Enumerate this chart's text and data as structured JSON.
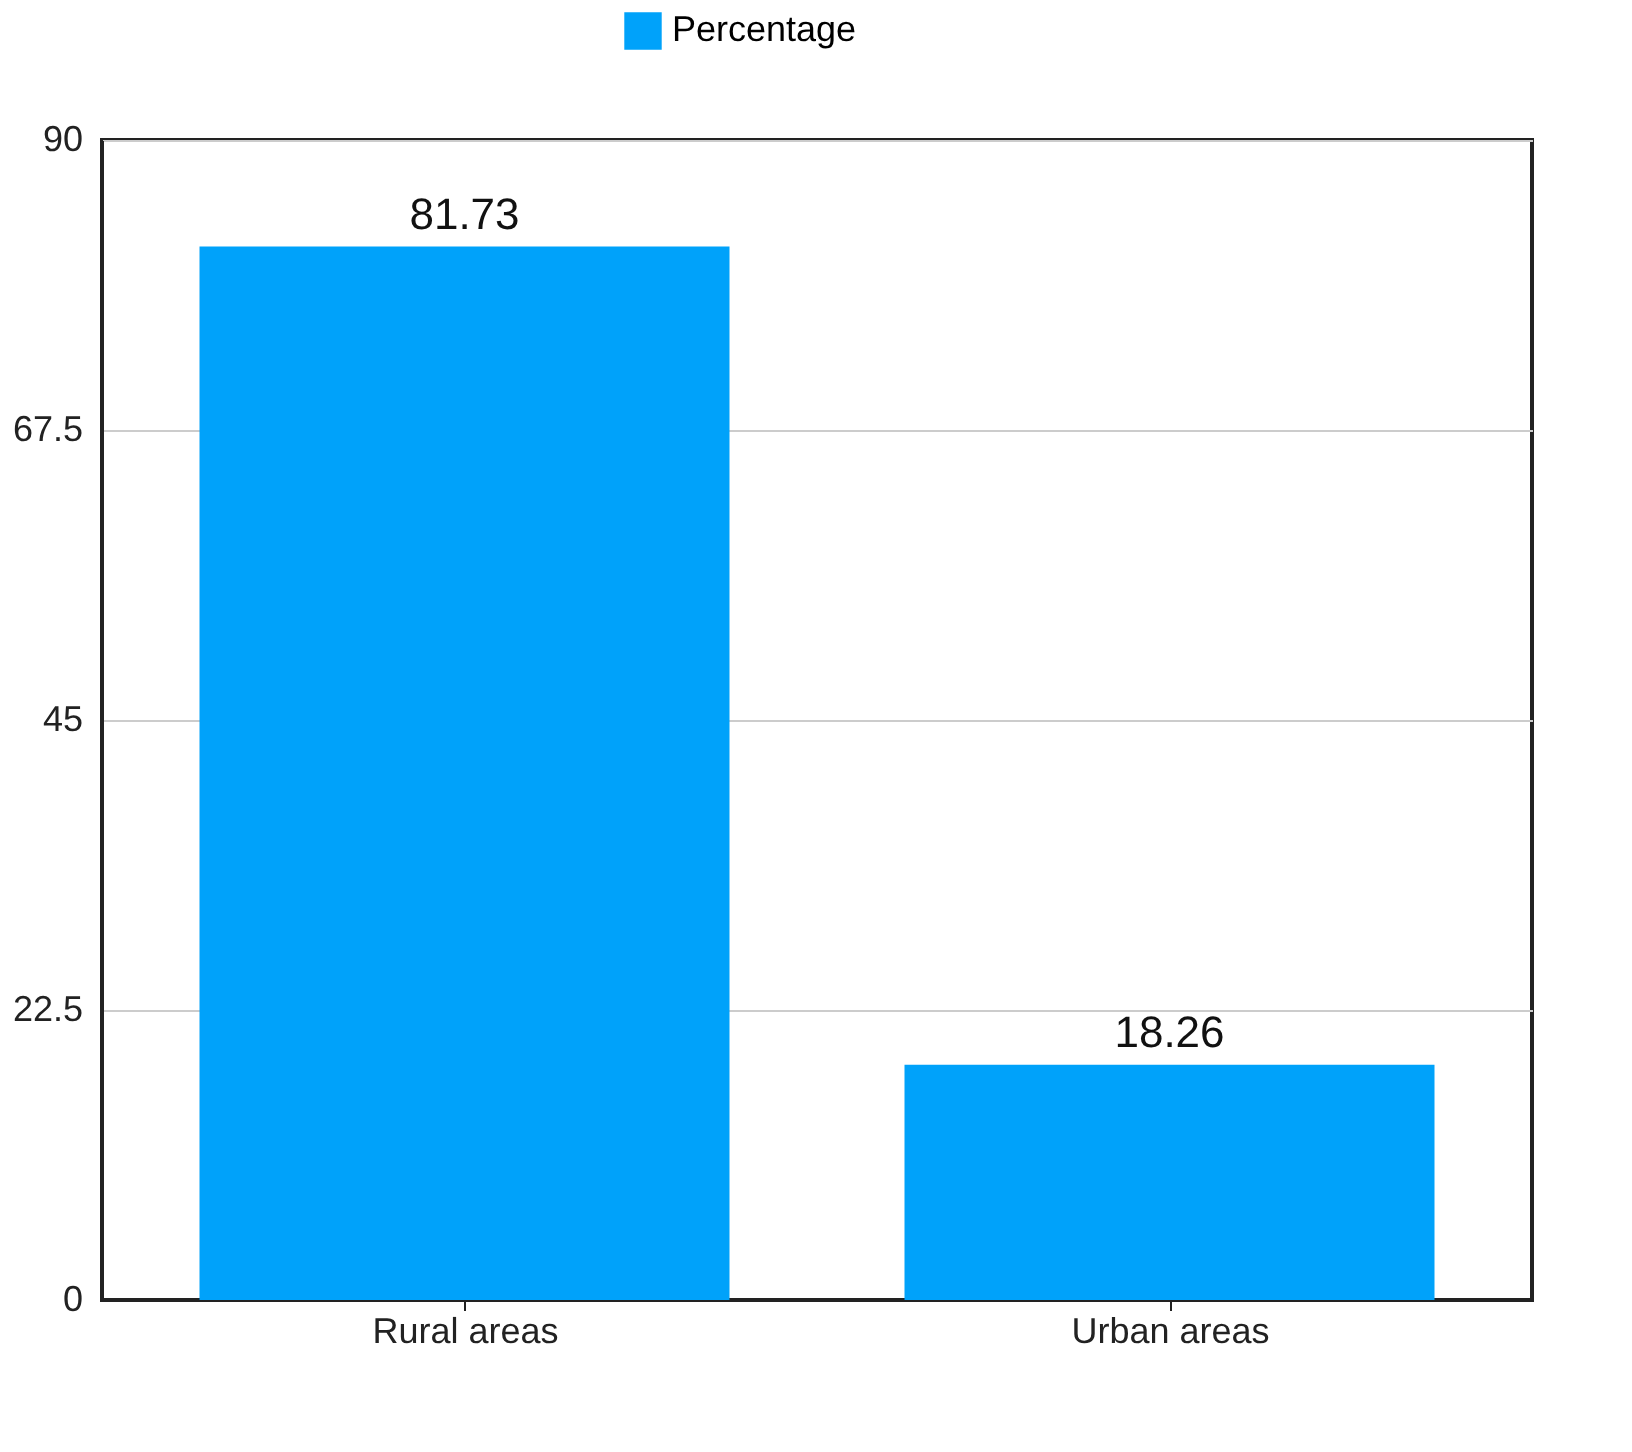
{
  "chart_data": {
    "type": "bar",
    "categories": [
      "Rural areas",
      "Urban areas"
    ],
    "series": [
      {
        "name": "Percentage",
        "color": "#00a2fa",
        "values": [
          81.73,
          18.26
        ]
      }
    ],
    "ylim": [
      0,
      90
    ],
    "yticks": [
      0,
      22.5,
      45,
      67.5,
      90
    ],
    "grid": "y",
    "legend": "top",
    "data_labels": true
  }
}
